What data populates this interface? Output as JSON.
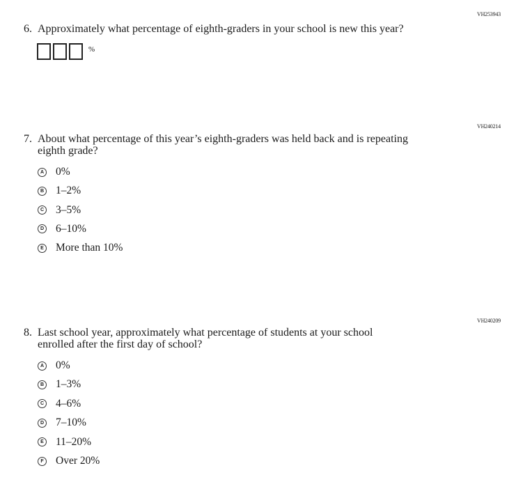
{
  "questions": [
    {
      "id": "VH253943",
      "number": "6.",
      "line1": "Approximately what percentage of eighth-graders in your school is new this year?",
      "unit": "%",
      "boxes": 3
    },
    {
      "id": "VH240214",
      "number": "7.",
      "line1": "About what percentage of this year’s eighth-graders was held back and is repeating",
      "line2": "eighth grade?",
      "options": [
        {
          "letter": "A",
          "text": "0%"
        },
        {
          "letter": "B",
          "text": "1–2%"
        },
        {
          "letter": "C",
          "text": "3–5%"
        },
        {
          "letter": "D",
          "text": "6–10%"
        },
        {
          "letter": "E",
          "text": "More than 10%"
        }
      ]
    },
    {
      "id": "VH240209",
      "number": "8.",
      "line1": "Last school year, approximately what percentage of students at your school",
      "line2": "enrolled after the first day of school?",
      "options": [
        {
          "letter": "A",
          "text": "0%"
        },
        {
          "letter": "B",
          "text": "1–3%"
        },
        {
          "letter": "C",
          "text": "4–6%"
        },
        {
          "letter": "D",
          "text": "7–10%"
        },
        {
          "letter": "E",
          "text": "11–20%"
        },
        {
          "letter": "F",
          "text": "Over 20%"
        }
      ]
    }
  ]
}
